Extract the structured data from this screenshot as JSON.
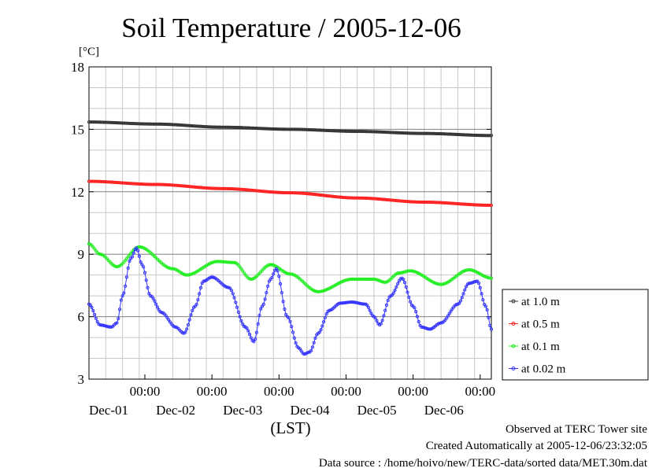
{
  "chart_data": {
    "type": "line",
    "title": "Soil Temperature / 2005-12-06",
    "ylabel": "[°C]",
    "xlabel": "(LST)",
    "ylim": [
      3,
      18
    ],
    "yticks": [
      3,
      6,
      9,
      12,
      15,
      18
    ],
    "xlim_hours": [
      0,
      144
    ],
    "xticks": [
      {
        "time": "00:00",
        "date": "Dec-01"
      },
      {
        "time": "00:00",
        "date": "Dec-02"
      },
      {
        "time": "00:00",
        "date": "Dec-03"
      },
      {
        "time": "00:00",
        "date": "Dec-04"
      },
      {
        "time": "00:00",
        "date": "Dec-05"
      },
      {
        "time": "00:00",
        "date": "Dec-06"
      }
    ],
    "grid": true,
    "legend_position": "right",
    "series": [
      {
        "name": "at 1.0 m",
        "color": "#333333",
        "points": [
          [
            0,
            15.35
          ],
          [
            24,
            15.25
          ],
          [
            48,
            15.1
          ],
          [
            72,
            15.0
          ],
          [
            96,
            14.9
          ],
          [
            120,
            14.8
          ],
          [
            144,
            14.7
          ]
        ]
      },
      {
        "name": "at 0.5 m",
        "color": "#ff2020",
        "points": [
          [
            0,
            12.5
          ],
          [
            24,
            12.35
          ],
          [
            48,
            12.15
          ],
          [
            72,
            11.95
          ],
          [
            96,
            11.7
          ],
          [
            120,
            11.5
          ],
          [
            144,
            11.35
          ]
        ]
      },
      {
        "name": "at 0.1 m",
        "color": "#22ee22",
        "points": [
          [
            0,
            9.5
          ],
          [
            4,
            9.0
          ],
          [
            10,
            8.4
          ],
          [
            18,
            9.35
          ],
          [
            30,
            8.3
          ],
          [
            35,
            8.0
          ],
          [
            46,
            8.65
          ],
          [
            52,
            8.6
          ],
          [
            58,
            7.8
          ],
          [
            65,
            8.5
          ],
          [
            72,
            8.05
          ],
          [
            82,
            7.2
          ],
          [
            94,
            7.8
          ],
          [
            102,
            7.8
          ],
          [
            106,
            7.65
          ],
          [
            111,
            8.1
          ],
          [
            115,
            8.2
          ],
          [
            126,
            7.55
          ],
          [
            136,
            8.25
          ],
          [
            144,
            7.85
          ]
        ]
      },
      {
        "name": "at 0.02 m",
        "color": "#3333ff",
        "points": [
          [
            0,
            6.6
          ],
          [
            4,
            5.6
          ],
          [
            8,
            5.5
          ],
          [
            10,
            5.7
          ],
          [
            12,
            7.0
          ],
          [
            15,
            8.8
          ],
          [
            17,
            9.3
          ],
          [
            19,
            8.5
          ],
          [
            22,
            7.0
          ],
          [
            26,
            6.2
          ],
          [
            31,
            5.5
          ],
          [
            34,
            5.2
          ],
          [
            38,
            6.5
          ],
          [
            41,
            7.7
          ],
          [
            44,
            7.9
          ],
          [
            50,
            7.4
          ],
          [
            56,
            5.5
          ],
          [
            59,
            4.8
          ],
          [
            62,
            6.5
          ],
          [
            65,
            7.8
          ],
          [
            67,
            8.3
          ],
          [
            71,
            6.0
          ],
          [
            75,
            4.5
          ],
          [
            77,
            4.2
          ],
          [
            79,
            4.3
          ],
          [
            82,
            5.2
          ],
          [
            86,
            6.3
          ],
          [
            90,
            6.65
          ],
          [
            94,
            6.7
          ],
          [
            99,
            6.6
          ],
          [
            102,
            6.0
          ],
          [
            104,
            5.6
          ],
          [
            108,
            7.0
          ],
          [
            112,
            7.85
          ],
          [
            116,
            6.5
          ],
          [
            119,
            5.5
          ],
          [
            122,
            5.4
          ],
          [
            126,
            5.7
          ],
          [
            132,
            6.6
          ],
          [
            136,
            7.6
          ],
          [
            139,
            7.7
          ],
          [
            142,
            6.5
          ],
          [
            144,
            5.4
          ]
        ]
      }
    ]
  },
  "footer": {
    "line1": "Observed at TERC Tower site",
    "line2": "Created Automatically at 2005-12-06/23:32:05",
    "line3": "Data source : /home/hoivo/new/TERC-data/sorted  data/MET.30m.dat"
  }
}
